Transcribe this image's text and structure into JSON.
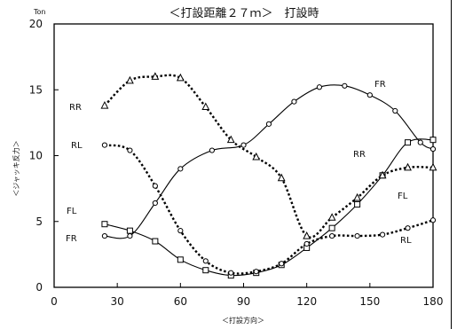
{
  "chart_data": {
    "type": "line",
    "title": "＜打設距離２７ｍ＞　打設時",
    "unit_label": "Ton",
    "xlabel": "＜打設方向＞",
    "ylabel": "＜ジャッキ反力＞",
    "xlim": [
      0,
      180
    ],
    "ylim": [
      0,
      20
    ],
    "xticks": [
      "0",
      "30",
      "60",
      "90",
      "120",
      "150",
      "180"
    ],
    "yticks": [
      "0",
      "5",
      "10",
      "15",
      "20"
    ],
    "grid": false,
    "series": [
      {
        "name": "FR",
        "line": "solid",
        "marker": "circle",
        "x": [
          24,
          36,
          48,
          60,
          75,
          90,
          102,
          114,
          126,
          138,
          150,
          162,
          174,
          180
        ],
        "y": [
          3.9,
          3.9,
          6.4,
          9.0,
          10.4,
          10.8,
          12.4,
          14.1,
          15.2,
          15.3,
          14.6,
          13.4,
          11.0,
          10.5
        ]
      },
      {
        "name": "FL",
        "line": "solid",
        "marker": "square",
        "x": [
          24,
          36,
          48,
          60,
          72,
          84,
          96,
          108,
          120,
          132,
          144,
          156,
          168,
          180
        ],
        "y": [
          4.8,
          4.3,
          3.5,
          2.1,
          1.3,
          0.9,
          1.1,
          1.7,
          3.0,
          4.5,
          6.3,
          8.5,
          11.0,
          11.2
        ]
      },
      {
        "name": "RR",
        "line": "dotted",
        "marker": "triangle",
        "x": [
          24,
          36,
          48,
          60,
          72,
          84,
          96,
          108,
          120,
          132,
          144,
          156,
          168,
          180
        ],
        "y": [
          13.8,
          15.7,
          16.0,
          15.9,
          13.7,
          11.2,
          9.9,
          8.3,
          3.9,
          5.3,
          6.8,
          8.5,
          9.1,
          9.1
        ]
      },
      {
        "name": "RL",
        "line": "dotted",
        "marker": "circle",
        "x": [
          24,
          36,
          48,
          60,
          72,
          84,
          96,
          108,
          120,
          132,
          144,
          156,
          168,
          180
        ],
        "y": [
          10.8,
          10.4,
          7.7,
          4.3,
          2.0,
          1.1,
          1.2,
          1.8,
          3.3,
          3.9,
          3.9,
          4.0,
          4.5,
          5.1
        ]
      }
    ]
  }
}
